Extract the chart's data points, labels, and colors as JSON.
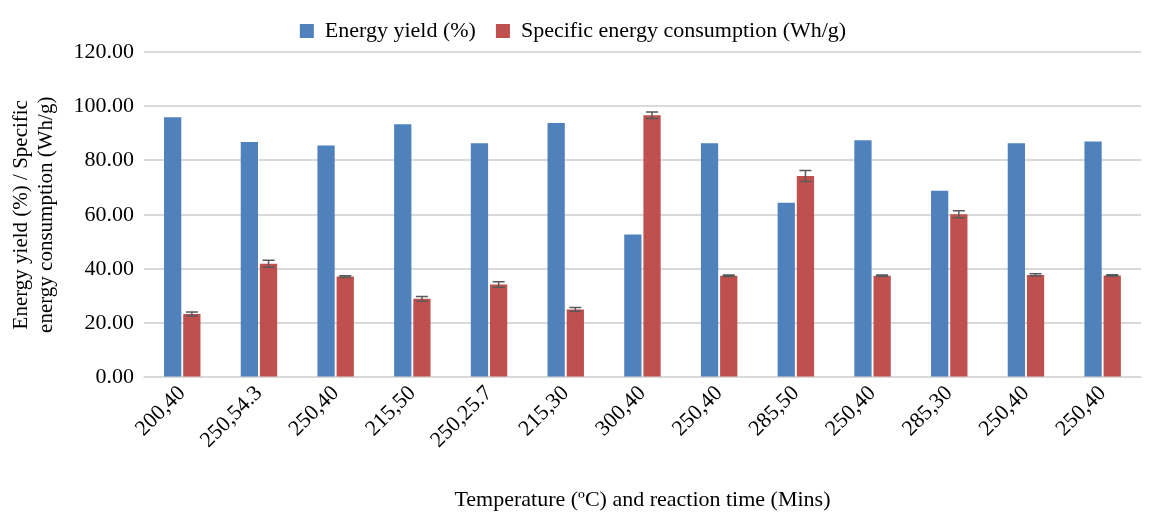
{
  "chart_data": {
    "type": "bar",
    "xlabel": "Temperature (ºC) and reaction time (Mins)",
    "ylabel": "Energy yield (%) / Specific energy consumption (Wh/g)",
    "categories": [
      "200,40",
      "250,54.3",
      "250,40",
      "215,50",
      "250,25.7",
      "215,30",
      "300,40",
      "250,40",
      "285,50",
      "250,40",
      "285,30",
      "250,40",
      "250,40"
    ],
    "series": [
      {
        "name": "Energy yield (%)",
        "color": "#4f81bd",
        "values": [
          95.9,
          86.8,
          85.5,
          93.4,
          86.4,
          93.8,
          52.7,
          86.4,
          64.4,
          87.5,
          68.8,
          86.4,
          87.0
        ]
      },
      {
        "name": "Specific energy consumption (Wh/g)",
        "color": "#c0504d",
        "values": [
          23.4,
          41.9,
          37.2,
          29.0,
          34.3,
          25.1,
          96.7,
          37.5,
          74.3,
          37.5,
          60.2,
          37.8,
          37.6
        ],
        "errors": [
          0.7,
          1.3,
          0.3,
          0.9,
          1.0,
          0.7,
          1.2,
          0.3,
          2.0,
          0.3,
          1.3,
          0.4,
          0.3
        ]
      }
    ],
    "ylim": [
      0,
      120
    ],
    "yticks": [
      {
        "value": 0,
        "label": "0.00"
      },
      {
        "value": 20,
        "label": "20.00"
      },
      {
        "value": 40,
        "label": "40.00"
      },
      {
        "value": 60,
        "label": "60.00"
      },
      {
        "value": 80,
        "label": "80.00"
      },
      {
        "value": 100,
        "label": "100.00"
      },
      {
        "value": 120,
        "label": "120.00"
      }
    ],
    "grid": "y",
    "legend": "top"
  }
}
